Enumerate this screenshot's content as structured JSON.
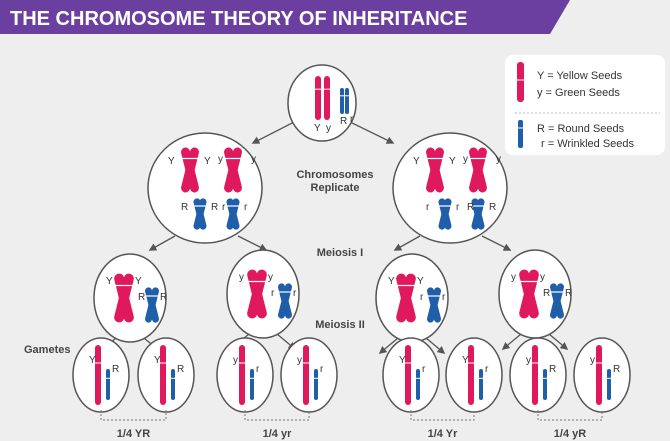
{
  "title": "THE CHROMOSOME THEORY OF INHERITANCE",
  "colors": {
    "header": "#6b3fa0",
    "pink": "#e0185e",
    "blue": "#1f5ea8",
    "background": "#eeeeee"
  },
  "legend": {
    "yellow": "Y = Yellow Seeds",
    "green": "y = Green Seeds",
    "round": "R = Round Seeds",
    "wrinkled": "r = Wrinkled Seeds"
  },
  "stages": {
    "replicate_1": "Chromosomes",
    "replicate_2": "Replicate",
    "meiosis1": "Meiosis I",
    "meiosis2": "Meiosis II",
    "gametes": "Gametes"
  },
  "parent_cell": {
    "pink": [
      "Y",
      "y"
    ],
    "blue": [
      "R",
      "r"
    ]
  },
  "replicated_cells": [
    {
      "pink": [
        "Y",
        "Y",
        "y",
        "y"
      ],
      "blue": [
        "R",
        "R",
        "r",
        "r"
      ]
    },
    {
      "pink": [
        "Y",
        "Y",
        "y",
        "y"
      ],
      "blue": [
        "r",
        "r",
        "R",
        "R"
      ]
    }
  ],
  "meiosis1_cells": [
    {
      "pink": [
        "Y",
        "Y"
      ],
      "blue": [
        "R",
        "R"
      ]
    },
    {
      "pink": [
        "y",
        "y"
      ],
      "blue": [
        "r",
        "r"
      ]
    },
    {
      "pink": [
        "Y",
        "Y"
      ],
      "blue": [
        "r",
        "r"
      ]
    },
    {
      "pink": [
        "y",
        "y"
      ],
      "blue": [
        "R",
        "R"
      ]
    }
  ],
  "gametes": [
    {
      "pink": "Y",
      "blue": "R"
    },
    {
      "pink": "Y",
      "blue": "R"
    },
    {
      "pink": "y",
      "blue": "r"
    },
    {
      "pink": "y",
      "blue": "r"
    },
    {
      "pink": "Y",
      "blue": "r"
    },
    {
      "pink": "Y",
      "blue": "r"
    },
    {
      "pink": "y",
      "blue": "R"
    },
    {
      "pink": "y",
      "blue": "R"
    }
  ],
  "results": [
    "1/4 YR",
    "1/4 yr",
    "1/4 Yr",
    "1/4 yR"
  ]
}
